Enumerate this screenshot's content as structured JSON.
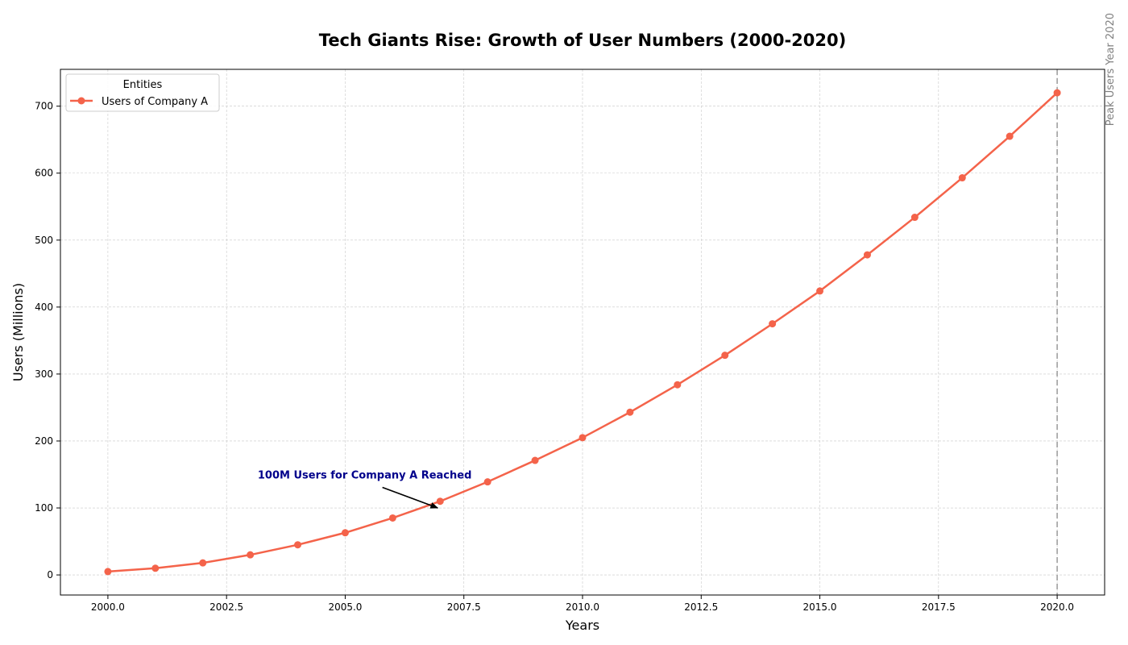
{
  "chart_data": {
    "type": "line",
    "title": "Tech Giants Rise: Growth of User Numbers (2000-2020)",
    "xlabel": "Years",
    "ylabel": "Users (Millions)",
    "x": [
      2000,
      2001,
      2002,
      2003,
      2004,
      2005,
      2006,
      2007,
      2008,
      2009,
      2010,
      2011,
      2012,
      2013,
      2014,
      2015,
      2016,
      2017,
      2018,
      2019,
      2020
    ],
    "series": [
      {
        "name": "Users of Company A",
        "color": "#f4634a",
        "values": [
          5,
          10,
          18,
          30,
          45,
          63,
          85,
          110,
          139,
          171,
          205,
          243,
          284,
          328,
          375,
          424,
          478,
          534,
          593,
          655,
          720
        ]
      }
    ],
    "xlim": [
      1999,
      2021
    ],
    "ylim": [
      -30,
      755
    ],
    "x_ticks": [
      2000,
      2002.5,
      2005,
      2007.5,
      2010,
      2012.5,
      2015,
      2017.5,
      2020
    ],
    "x_tick_labels": [
      "2000.0",
      "2002.5",
      "2005.0",
      "2007.5",
      "2010.0",
      "2012.5",
      "2015.0",
      "2017.5",
      "2020.0"
    ],
    "y_ticks": [
      0,
      100,
      200,
      300,
      400,
      500,
      600,
      700
    ],
    "y_tick_labels": [
      "0",
      "100",
      "200",
      "300",
      "400",
      "500",
      "600",
      "700"
    ],
    "grid": true,
    "legend": {
      "title": "Entities",
      "position": "top-left"
    },
    "annotation": {
      "text": "100M Users for Company A Reached",
      "color": "#00008b",
      "point": [
        2007,
        100
      ],
      "text_at": [
        2003,
        150
      ]
    },
    "vline": {
      "x": 2020,
      "label": "Peak Users Year 2020",
      "color": "#a0a0a0"
    }
  }
}
